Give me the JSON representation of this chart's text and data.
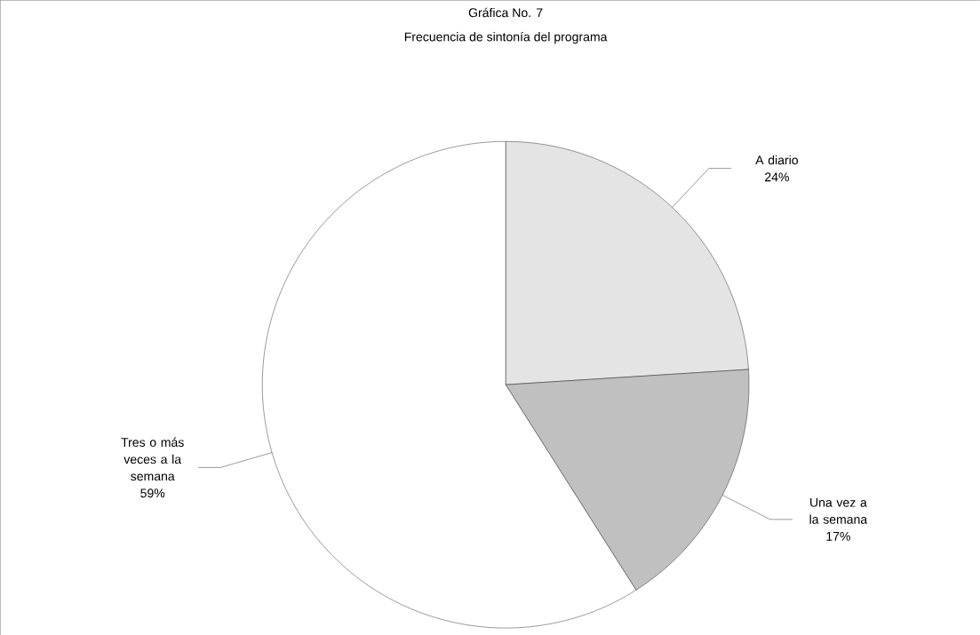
{
  "chart_data": {
    "type": "pie",
    "title": "Gráfica No. 7",
    "subtitle": "Frecuencia de sintonía del programa",
    "categories": [
      "A diario",
      "Una vez a la semana",
      "Tres o más veces a la semana"
    ],
    "values": [
      24,
      17,
      59
    ],
    "value_labels": [
      "24%",
      "17%",
      "59%"
    ],
    "colors": [
      "#e4e4e4",
      "#c0c0c0",
      "#ffffff"
    ],
    "legend": false
  }
}
